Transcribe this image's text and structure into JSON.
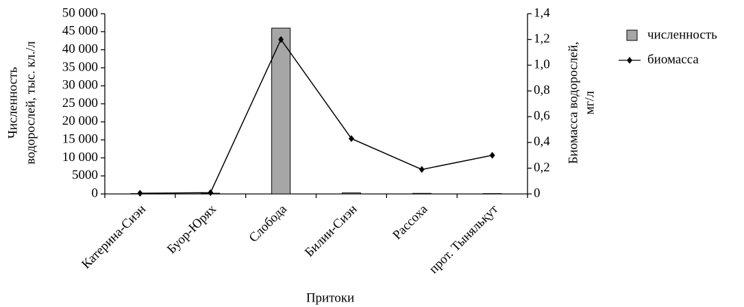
{
  "chart_data": {
    "type": "combo",
    "categories": [
      "Катерина-Сиэн",
      "Буор-Юрях",
      "Слобода",
      "Билии-Сиэн",
      "Рассоха",
      "прот.  Тыняльқут"
    ],
    "series": [
      {
        "name": "численность",
        "type": "bar",
        "axis": "y",
        "color": "#a6a6a6",
        "values": [
          100,
          200,
          46000,
          300,
          150,
          100
        ]
      },
      {
        "name": "биомасса",
        "type": "line",
        "axis": "y2",
        "color": "#000000",
        "values": [
          0.005,
          0.01,
          1.2,
          0.43,
          0.19,
          0.3
        ]
      }
    ],
    "xlabel": "Притоки",
    "ylabel": [
      "Численность",
      "водорослей, тыс.  кл./л"
    ],
    "y2label": [
      "Биомасса водорослей,",
      "мг/л"
    ],
    "ylim": [
      0,
      50000
    ],
    "yticks": [
      0,
      5000,
      {
        "value": 10000,
        "label": "10 000"
      },
      {
        "value": 15000,
        "label": "15 000"
      },
      {
        "value": 20000,
        "label": "20 000"
      },
      {
        "value": 25000,
        "label": "25 000"
      },
      {
        "value": 30000,
        "label": "30 000"
      },
      {
        "value": 35000,
        "label": "35 000"
      },
      {
        "value": 40000,
        "label": "40 000"
      },
      {
        "value": 45000,
        "label": "45 000"
      },
      {
        "value": 50000,
        "label": "50 000"
      }
    ],
    "y2lim": [
      0,
      1.4
    ],
    "y2ticks": [
      0,
      {
        "value": 0.2,
        "label": "0,2"
      },
      {
        "value": 0.4,
        "label": "0,4"
      },
      {
        "value": 0.6,
        "label": "0,6"
      },
      {
        "value": 0.8,
        "label": "0,8"
      },
      {
        "value": 1.0,
        "label": "1,0"
      },
      {
        "value": 1.2,
        "label": "1,2"
      },
      {
        "value": 1.4,
        "label": "1,4"
      }
    ],
    "legend": "right"
  }
}
